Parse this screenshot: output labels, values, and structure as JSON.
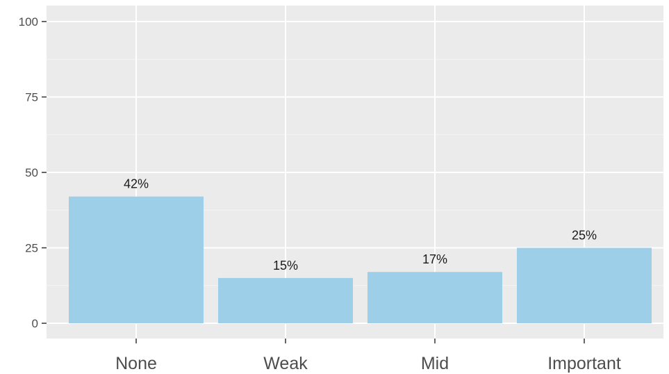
{
  "chart_data": {
    "type": "bar",
    "categories": [
      "None",
      "Weak",
      "Mid",
      "Important"
    ],
    "values": [
      42,
      15,
      17,
      25
    ],
    "data_labels": [
      "42%",
      "15%",
      "17%",
      "25%"
    ],
    "ylim": [
      0,
      100
    ],
    "yticks": [
      0,
      25,
      50,
      75,
      100
    ],
    "grid": true,
    "legend": "none",
    "colors": {
      "bar": "#9dcfe8",
      "panel": "#ebebeb",
      "grid_major": "#ffffff",
      "grid_minor": "#f4f4f4",
      "tick": "#333333"
    }
  }
}
